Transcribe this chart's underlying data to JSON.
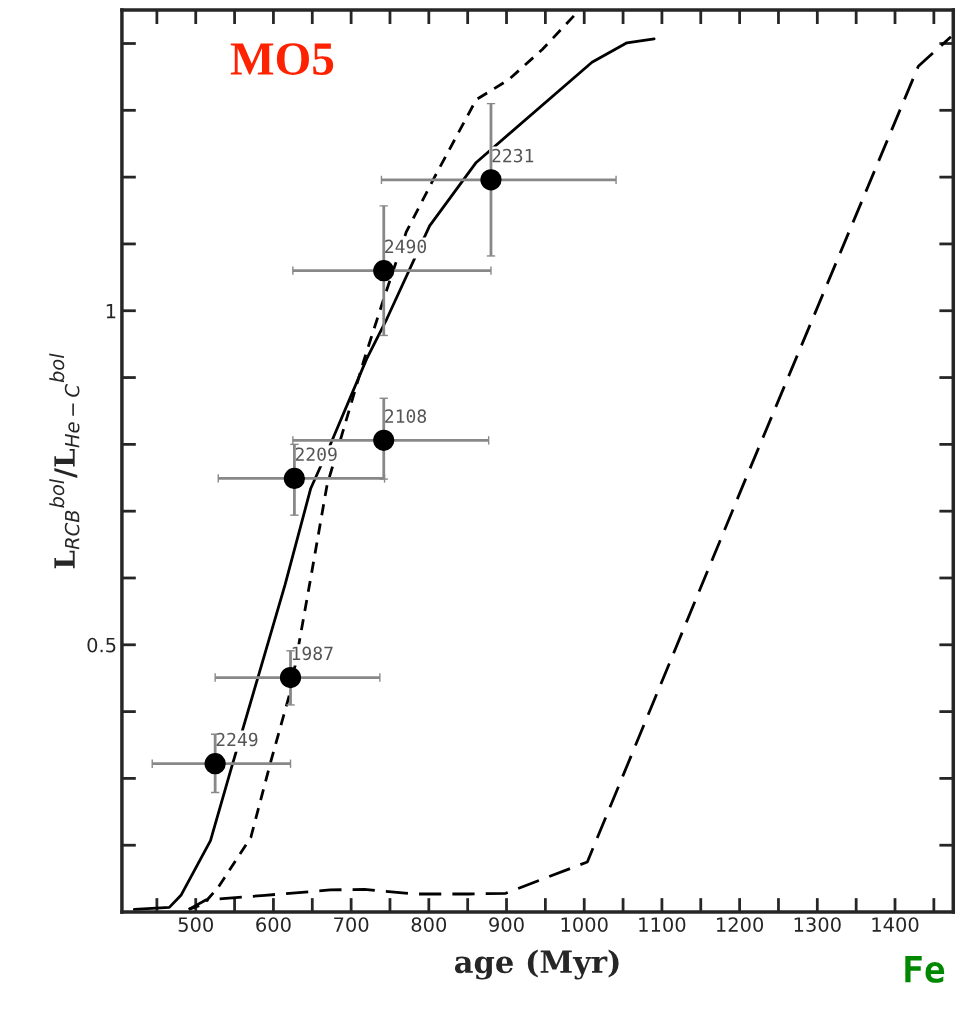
{
  "chart_data": {
    "type": "line",
    "xlabel": "age (Myr)",
    "ylabel": "L$_{RCB}$$^{bol}$/L$_{He−C}$$^{bol}$",
    "xlim": [
      405,
      1475
    ],
    "ylim": [
      0.1,
      1.45
    ],
    "xticks": [
      {
        "value": 450,
        "label": null
      },
      500,
      {
        "value": 550,
        "label": null
      },
      600,
      {
        "value": 650,
        "label": null
      },
      700,
      {
        "value": 750,
        "label": null
      },
      800,
      {
        "value": 850,
        "label": null
      },
      900,
      {
        "value": 950,
        "label": null
      },
      1000,
      {
        "value": 1050,
        "label": null
      },
      1100,
      {
        "value": 1150,
        "label": null
      },
      1200,
      {
        "value": 1250,
        "label": null
      },
      1300,
      {
        "value": 1350,
        "label": null
      },
      1400,
      {
        "value": 1450,
        "label": null
      }
    ],
    "yticks": [
      {
        "value": 0.2,
        "label": null
      },
      {
        "value": 0.3,
        "label": null
      },
      {
        "value": 0.4,
        "label": null
      },
      0.5,
      {
        "value": 0.6,
        "label": null
      },
      {
        "value": 0.7,
        "label": null
      },
      {
        "value": 0.8,
        "label": null
      },
      {
        "value": 0.9,
        "label": null
      },
      1,
      {
        "value": 1.1,
        "label": null
      },
      {
        "value": 1.2,
        "label": null
      },
      {
        "value": 1.3,
        "label": null
      },
      {
        "value": 1.4,
        "label": null
      }
    ],
    "grid": false,
    "legend": false,
    "series": [
      {
        "color": "#000000",
        "line_style": "solid",
        "marker": "none",
        "x": [
          421,
          466,
          481,
          519,
          546,
          580,
          615,
          648,
          673,
          720,
          746,
          801,
          861,
          1010,
          1055,
          1090
        ],
        "values": [
          0.104,
          0.107,
          0.125,
          0.207,
          0.316,
          0.451,
          0.59,
          0.734,
          0.799,
          0.928,
          0.988,
          1.127,
          1.222,
          1.372,
          1.401,
          1.407
        ]
      },
      {
        "color": "#000000",
        "line_style": "dashed",
        "marker": "none",
        "x": [
          491,
          510,
          529,
          571,
          597,
          622,
          648,
          669,
          717,
          742,
          771,
          806,
          861,
          903,
          946,
          992
        ],
        "values": [
          0.104,
          0.112,
          0.137,
          0.212,
          0.327,
          0.431,
          0.6,
          0.739,
          0.928,
          1.018,
          1.118,
          1.197,
          1.316,
          1.346,
          1.391,
          1.448
        ]
      },
      {
        "color": "#000000",
        "line_style": "dashed",
        "marker": "none",
        "x": [
          491,
          513,
          589,
          673,
          717,
          780,
          852,
          899,
          1004,
          1208,
          1430,
          1472
        ],
        "values": [
          0.104,
          0.118,
          0.125,
          0.133,
          0.134,
          0.127,
          0.127,
          0.128,
          0.175,
          0.749,
          1.366,
          1.41
        ]
      },
      {
        "type": "scatter",
        "color": "#000000",
        "marker": "circle",
        "x": [
          525,
          622,
          627,
          742,
          742,
          880
        ],
        "values": [
          0.322,
          0.451,
          0.749,
          0.806,
          1.06,
          1.196
        ],
        "errors": [
          [
            0.279,
            0.366
          ],
          [
            0.41,
            0.491
          ],
          [
            0.694,
            0.8
          ],
          [
            0.748,
            0.869
          ],
          [
            0.963,
            1.157
          ],
          [
            1.082,
            1.31
          ]
        ],
        "xerrors": [
          [
            444,
            622
          ],
          [
            525,
            737
          ],
          [
            529,
            743
          ],
          [
            625,
            877
          ],
          [
            625,
            880
          ],
          [
            739,
            1041
          ]
        ]
      }
    ],
    "annotations": [
      {
        "text": "2249",
        "x": 525,
        "y": 0.322
      },
      {
        "text": "1987",
        "x": 622,
        "y": 0.451
      },
      {
        "text": "2209",
        "x": 627,
        "y": 0.749
      },
      {
        "text": "2108",
        "x": 742,
        "y": 0.806
      },
      {
        "text": "2490",
        "x": 742,
        "y": 1.06
      },
      {
        "text": "2231",
        "x": 880,
        "y": 1.196
      },
      "MO5",
      "Fe"
    ]
  }
}
